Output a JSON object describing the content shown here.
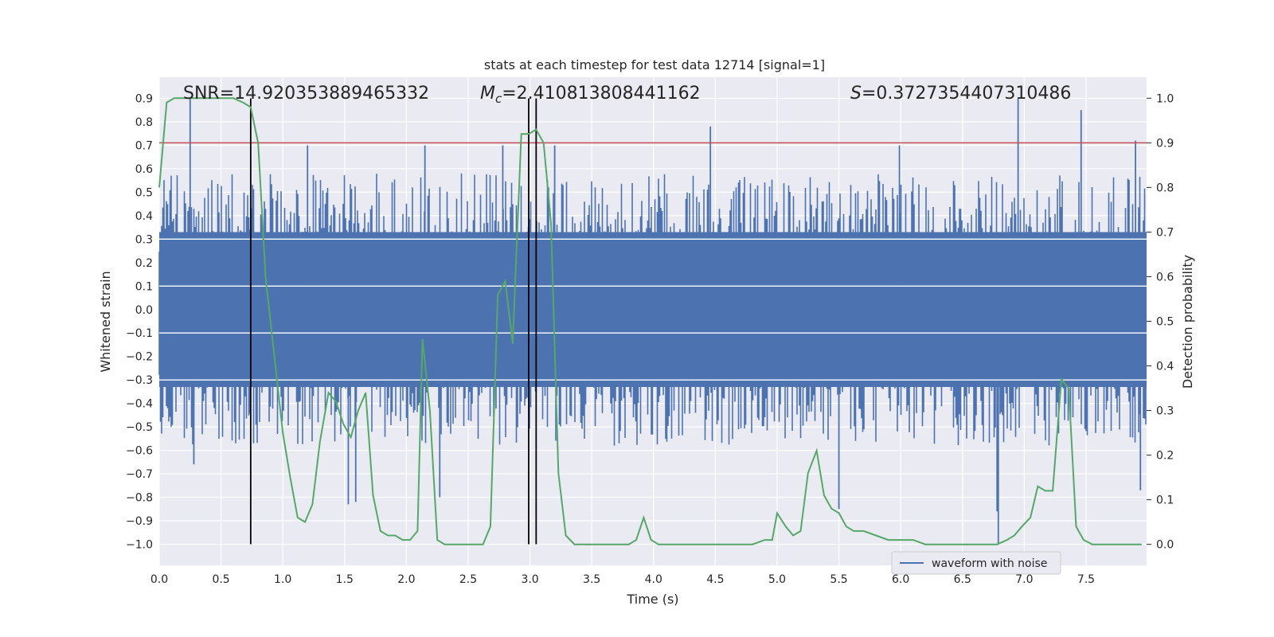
{
  "chart_data": {
    "type": "line",
    "title": "stats at each timestep for test data 12714 [signal=1]",
    "xlabel": "Time (s)",
    "ylabel": "Whitened strain",
    "y2label": "Detection probability",
    "xlim": [
      0.0,
      7.99
    ],
    "ylim": [
      -1.09,
      0.99
    ],
    "y2lim": [
      -0.047,
      1.047
    ],
    "x_ticks": [
      "0.0",
      "0.5",
      "1.0",
      "1.5",
      "2.0",
      "2.5",
      "3.0",
      "3.5",
      "4.0",
      "4.5",
      "5.0",
      "5.5",
      "6.0",
      "6.5",
      "7.0",
      "7.5"
    ],
    "y_ticks": [
      "0.9",
      "0.8",
      "0.7",
      "0.6",
      "0.5",
      "0.4",
      "0.3",
      "0.2",
      "0.1",
      "0.0",
      "−0.1",
      "−0.2",
      "−0.3",
      "−0.4",
      "−0.5",
      "−0.6",
      "−0.7",
      "−0.8",
      "−0.9",
      "−1.0"
    ],
    "y2_ticks": [
      "1.0",
      "0.9",
      "0.8",
      "0.7",
      "0.6",
      "0.5",
      "0.4",
      "0.3",
      "0.2",
      "0.1",
      "0.0"
    ],
    "grid": true,
    "legend": {
      "placement": "lower-right",
      "entries": [
        "waveform with noise"
      ]
    },
    "annotations": {
      "snr": "SNR=14.920353889465332",
      "mc_symbol": "M",
      "mc_sub": "c",
      "mc_value": "=2.410813808441162",
      "s_symbol": "S",
      "s_value": "=0.3727354407310486"
    },
    "threshold": {
      "axis": "y2",
      "value": 0.9
    },
    "vlines": [
      0.74,
      2.99,
      3.05
    ],
    "waveform": {
      "name": "waveform with noise",
      "x_range": [
        0.0,
        7.99
      ],
      "typical_upper": 0.4,
      "typical_lower": -0.4,
      "spikes": [
        {
          "x": 0.25,
          "y": 0.9
        },
        {
          "x": 1.2,
          "y": 0.7
        },
        {
          "x": 2.15,
          "y": 0.7
        },
        {
          "x": 2.78,
          "y": 0.7
        },
        {
          "x": 3.2,
          "y": 0.7
        },
        {
          "x": 4.46,
          "y": 0.78
        },
        {
          "x": 5.99,
          "y": 0.7
        },
        {
          "x": 6.95,
          "y": 0.9
        },
        {
          "x": 7.46,
          "y": 0.85
        },
        {
          "x": 7.9,
          "y": 0.72
        },
        {
          "x": 0.28,
          "y": -0.66
        },
        {
          "x": 1.53,
          "y": -0.83
        },
        {
          "x": 1.59,
          "y": -0.82
        },
        {
          "x": 2.27,
          "y": -0.8
        },
        {
          "x": 5.5,
          "y": -0.85
        },
        {
          "x": 6.78,
          "y": -0.86
        },
        {
          "x": 6.79,
          "y": -1.0
        },
        {
          "x": 7.94,
          "y": -0.77
        }
      ]
    },
    "probability": {
      "axis": "y2",
      "x": [
        0.0,
        0.06,
        0.12,
        0.2,
        0.4,
        0.6,
        0.68,
        0.74,
        0.8,
        0.86,
        0.92,
        1.0,
        1.06,
        1.12,
        1.18,
        1.24,
        1.3,
        1.37,
        1.43,
        1.49,
        1.55,
        1.61,
        1.67,
        1.73,
        1.79,
        1.85,
        1.91,
        1.97,
        2.03,
        2.09,
        2.13,
        2.19,
        2.25,
        2.31,
        2.37,
        2.43,
        2.5,
        2.56,
        2.62,
        2.68,
        2.74,
        2.8,
        2.86,
        2.93,
        2.99,
        3.05,
        3.11,
        3.17,
        3.23,
        3.29,
        3.36,
        3.5,
        3.8,
        3.86,
        3.92,
        3.98,
        4.04,
        4.3,
        4.6,
        4.8,
        4.9,
        4.96,
        5.0,
        5.07,
        5.13,
        5.19,
        5.25,
        5.32,
        5.38,
        5.44,
        5.5,
        5.56,
        5.62,
        5.7,
        5.8,
        5.9,
        6.0,
        6.1,
        6.2,
        6.4,
        6.6,
        6.78,
        6.86,
        6.92,
        6.98,
        7.05,
        7.11,
        7.17,
        7.23,
        7.3,
        7.36,
        7.42,
        7.48,
        7.55,
        7.65,
        7.75,
        7.85,
        7.95
      ],
      "y": [
        0.8,
        0.99,
        1.0,
        1.0,
        1.0,
        1.0,
        0.99,
        0.98,
        0.9,
        0.6,
        0.45,
        0.25,
        0.15,
        0.06,
        0.05,
        0.09,
        0.23,
        0.34,
        0.32,
        0.27,
        0.24,
        0.3,
        0.34,
        0.11,
        0.03,
        0.02,
        0.02,
        0.01,
        0.01,
        0.03,
        0.46,
        0.3,
        0.01,
        0.0,
        0.0,
        0.0,
        0.0,
        0.0,
        0.0,
        0.04,
        0.56,
        0.59,
        0.45,
        0.92,
        0.92,
        0.93,
        0.9,
        0.72,
        0.16,
        0.02,
        0.0,
        0.0,
        0.0,
        0.01,
        0.06,
        0.01,
        0.0,
        0.0,
        0.0,
        0.0,
        0.01,
        0.01,
        0.07,
        0.04,
        0.02,
        0.03,
        0.16,
        0.21,
        0.11,
        0.08,
        0.07,
        0.04,
        0.03,
        0.03,
        0.02,
        0.01,
        0.01,
        0.01,
        0.0,
        0.0,
        0.0,
        0.0,
        0.01,
        0.02,
        0.04,
        0.06,
        0.13,
        0.12,
        0.12,
        0.37,
        0.35,
        0.04,
        0.01,
        0.0,
        0.0,
        0.0,
        0.0,
        0.0
      ]
    }
  }
}
